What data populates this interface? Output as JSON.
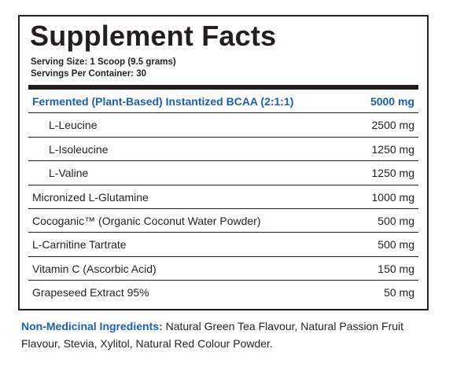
{
  "panel": {
    "title": "Supplement Facts",
    "serving_size": "Serving Size: 1 Scoop (9.5 grams)",
    "servings_per_container": "Servings Per Container: 30",
    "header_row": {
      "name": "Fermented (Plant-Based) Instantized BCAA (2:1:1)",
      "amount": "5000 mg"
    },
    "sub_rows": [
      {
        "name": "L-Leucine",
        "amount": "2500 mg"
      },
      {
        "name": "L-Isoleucine",
        "amount": "1250 mg"
      },
      {
        "name": "L-Valine",
        "amount": "1250 mg"
      }
    ],
    "rows": [
      {
        "name": "Micronized L-Glutamine",
        "amount": "1000 mg"
      },
      {
        "name": "Cocoganic™ (Organic Coconut Water Powder)",
        "amount": "500 mg"
      },
      {
        "name": "L-Carnitine Tartrate",
        "amount": "500 mg"
      },
      {
        "name": "Vitamin C (Ascorbic Acid)",
        "amount": "150 mg"
      },
      {
        "name": "Grapeseed Extract 95%",
        "amount": "50 mg"
      }
    ]
  },
  "footer": {
    "label": "Non-Medicinal Ingredients:",
    "text": " Natural Green Tea Flavour, Natural Passion Fruit Flavour, Stevia, Xylitol, Natural Red Colour Powder."
  },
  "colors": {
    "accent_blue": "#1f5fa8",
    "text": "#231f20"
  }
}
